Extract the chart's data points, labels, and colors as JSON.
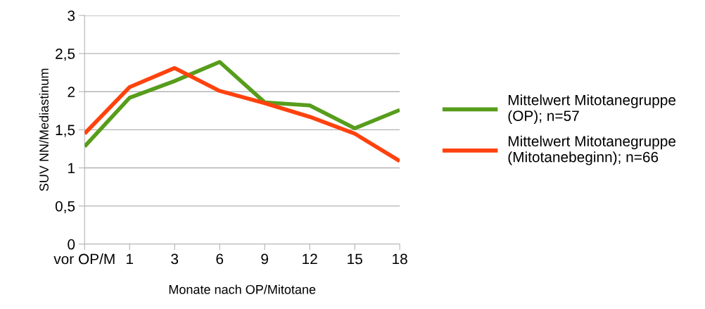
{
  "chart_data": {
    "type": "line",
    "xlabel": "Monate nach OP/Mitotane",
    "ylabel": "SUV NN/Mediastinum",
    "categories": [
      "vor OP/M",
      "1",
      "3",
      "6",
      "9",
      "12",
      "15",
      "18"
    ],
    "series": [
      {
        "name": "Mittelwert Mitotanegruppe (OP); n=57",
        "color": "#579d1c",
        "values": [
          1.28,
          1.92,
          2.14,
          2.39,
          1.86,
          1.82,
          1.52,
          1.76
        ]
      },
      {
        "name": "Mittelwert Mitotanegruppe (Mitotanebeginn); n=66",
        "color": "#ff420e",
        "values": [
          1.45,
          2.06,
          2.31,
          2.01,
          1.85,
          1.67,
          1.45,
          1.09
        ]
      }
    ],
    "ylim": [
      0,
      3
    ],
    "yticks": [
      0,
      {
        "value": 0.5,
        "label": "0,5"
      },
      1,
      {
        "value": 1.5,
        "label": "1,5"
      },
      2,
      {
        "value": 2.5,
        "label": "2,5"
      },
      3
    ],
    "grid": "y",
    "legend": "right",
    "marker": "none",
    "line_style": "solid"
  }
}
